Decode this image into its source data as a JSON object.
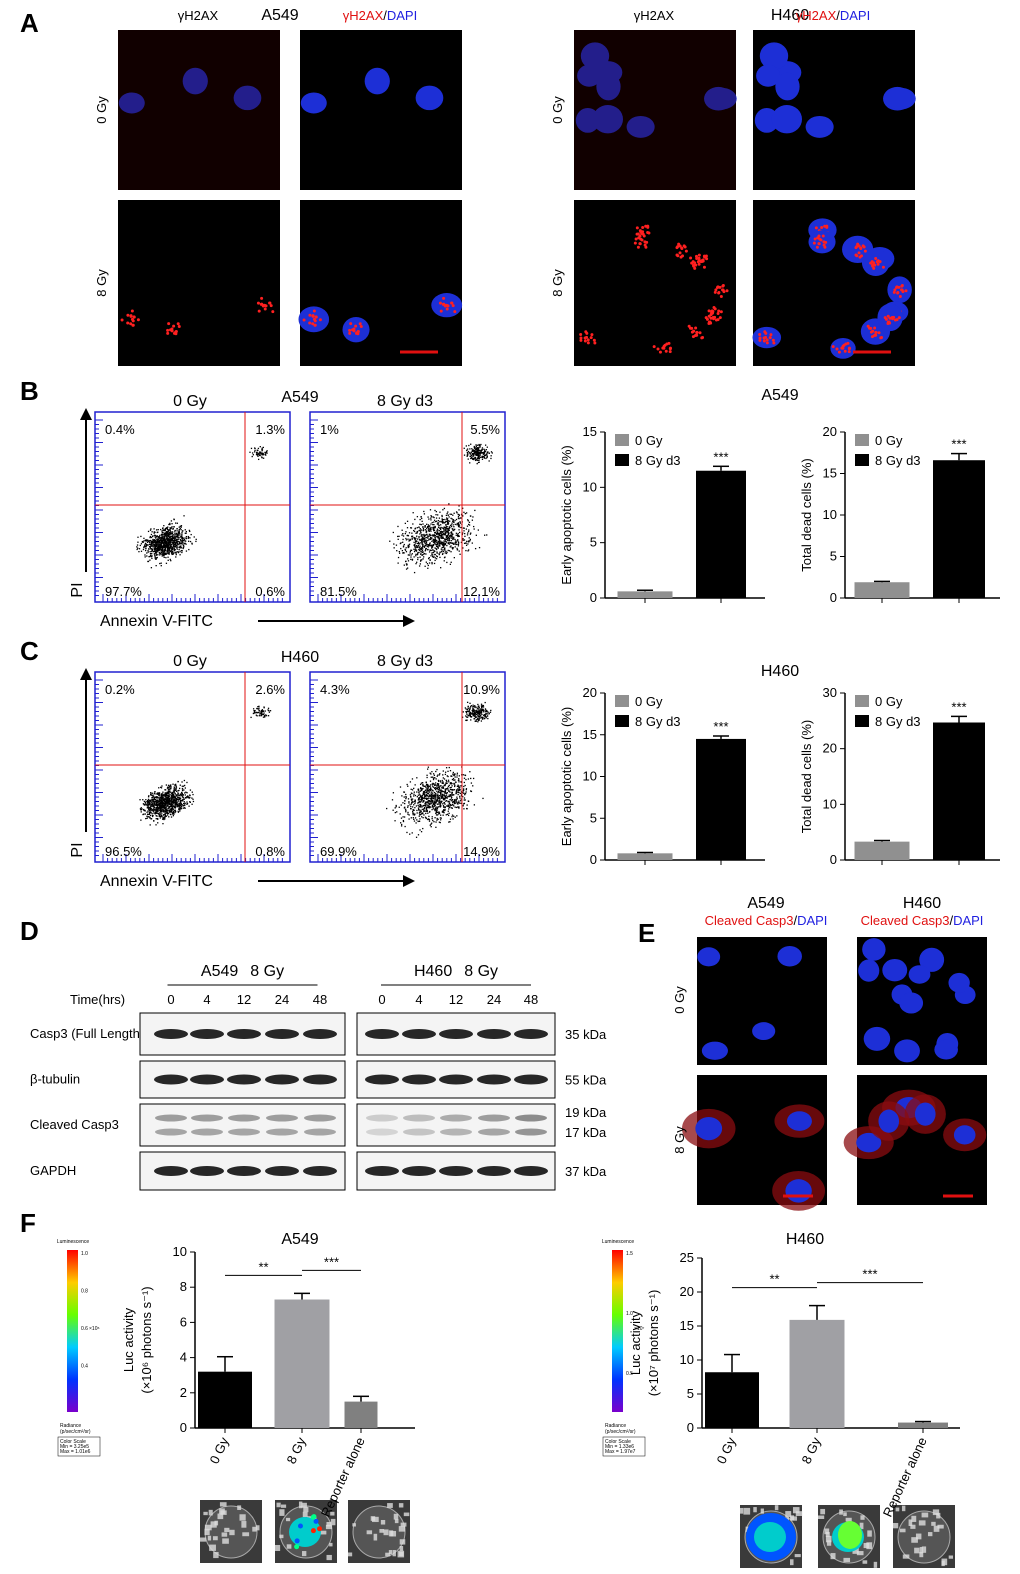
{
  "panel_labels": [
    "A",
    "B",
    "C",
    "D",
    "E",
    "F"
  ],
  "panel_a": {
    "cell_lines": [
      "A549",
      "H460"
    ],
    "stain": "γH2AX",
    "slash": "/",
    "dapi": "DAPI",
    "doses": [
      "0 Gy",
      "8 Gy"
    ]
  },
  "flow": {
    "y_axis": "PI",
    "x_axis": "Annexin V-FITC",
    "sets": [
      {
        "cell_line": "A549",
        "plots": [
          {
            "title": "0 Gy",
            "quadrants": [
              "0.4%",
              "1.3%",
              "97.7%",
              "0.6%"
            ]
          },
          {
            "title": "8 Gy d3",
            "quadrants": [
              "1%",
              "5.5%",
              "81.5%",
              "12.1%"
            ]
          }
        ]
      },
      {
        "cell_line": "H460",
        "plots": [
          {
            "title": "0 Gy",
            "quadrants": [
              "0.2%",
              "2.6%",
              "96.5%",
              "0.8%"
            ]
          },
          {
            "title": "8 Gy d3",
            "quadrants": [
              "4.3%",
              "10.9%",
              "69.9%",
              "14.9%"
            ]
          }
        ]
      }
    ]
  },
  "western": {
    "groups": [
      {
        "cell_line": "A549",
        "dose": "8 Gy"
      },
      {
        "cell_line": "H460",
        "dose": "8 Gy"
      }
    ],
    "time_label": "Time(hrs)",
    "times": [
      "0",
      "4",
      "12",
      "24",
      "48"
    ],
    "rows": [
      {
        "name": "Casp3 (Full Length)",
        "sizes": [
          "35 kDa"
        ]
      },
      {
        "name": "β-tubulin",
        "sizes": [
          "55 kDa"
        ]
      },
      {
        "name": "Cleaved Casp3",
        "sizes": [
          "19 kDa",
          "17 kDa"
        ]
      },
      {
        "name": "GAPDH",
        "sizes": [
          "37 kDa"
        ]
      }
    ]
  },
  "panel_e": {
    "cell_lines": [
      "A549",
      "H460"
    ],
    "stain": "Cleaved Casp3",
    "slash": "/",
    "dapi": "DAPI",
    "doses": [
      "0 Gy",
      "8 Gy"
    ]
  },
  "colorbars": [
    {
      "title": "Luminescence",
      "ticks": [
        "1.0",
        "0.8",
        "0.6",
        "0.4"
      ],
      "exponent": "×10⁶",
      "unit_title": "Radiance",
      "unit": "(p/sec/cm²/sr)",
      "scale_title": "Color Scale",
      "min": "Min = 3.25e5",
      "max": "Max = 1.01e6"
    },
    {
      "title": "Luminescence",
      "ticks": [
        "1.5",
        "1.0",
        "0.5"
      ],
      "exponent": "×10⁷",
      "unit_title": "Radiance",
      "unit": "(p/sec/cm²/sr)",
      "scale_title": "Color Scale",
      "min": "Min = 1.33e6",
      "max": "Max = 1.97e7"
    }
  ],
  "chart_data": [
    {
      "type": "bar",
      "title": "A549",
      "ylabel": [
        "Early apoptotic cells (%)"
      ],
      "categories": [
        "0 Gy",
        "8 Gy d3"
      ],
      "colors": [
        "#909090",
        "#000000"
      ],
      "values": [
        0.6,
        11.5
      ],
      "errors": [
        0.1,
        0.4
      ],
      "bar_labels": [
        null,
        "***"
      ],
      "ylim": [
        0,
        15
      ],
      "yticks": [
        0,
        5,
        10,
        15
      ],
      "legend": "upper left"
    },
    {
      "type": "bar",
      "ylabel": [
        "Total dead cells (%)"
      ],
      "categories": [
        "0 Gy",
        "8 Gy d3"
      ],
      "colors": [
        "#909090",
        "#000000"
      ],
      "values": [
        1.9,
        16.6
      ],
      "errors": [
        0.1,
        0.8
      ],
      "bar_labels": [
        null,
        "***"
      ],
      "ylim": [
        0,
        20
      ],
      "yticks": [
        0,
        5,
        10,
        15,
        20
      ],
      "legend": "upper left"
    },
    {
      "type": "bar",
      "title": "H460",
      "ylabel": [
        "Early apoptotic cells (%)"
      ],
      "categories": [
        "0 Gy",
        "8 Gy d3"
      ],
      "colors": [
        "#909090",
        "#000000"
      ],
      "values": [
        0.8,
        14.5
      ],
      "errors": [
        0.1,
        0.35
      ],
      "bar_labels": [
        null,
        "***"
      ],
      "ylim": [
        0,
        20
      ],
      "yticks": [
        0,
        5,
        10,
        15,
        20
      ],
      "legend": "upper left"
    },
    {
      "type": "bar",
      "ylabel": [
        "Total dead cells (%)"
      ],
      "categories": [
        "0 Gy",
        "8 Gy d3"
      ],
      "colors": [
        "#909090",
        "#000000"
      ],
      "values": [
        3.3,
        24.7
      ],
      "errors": [
        0.2,
        1.1
      ],
      "bar_labels": [
        null,
        "***"
      ],
      "ylim": [
        0,
        30
      ],
      "yticks": [
        0,
        10,
        20,
        30
      ],
      "legend": "upper left"
    },
    {
      "type": "bar",
      "title": "A549",
      "ylabel": [
        "Luc activity",
        "(×10⁶ photons s⁻¹)"
      ],
      "categories": [
        "0 Gy",
        "8 Gy",
        "Reporter alone"
      ],
      "colors": [
        "#000000",
        "#a0a0a4",
        "#808080"
      ],
      "values": [
        3.2,
        7.3,
        1.5
      ],
      "errors": [
        0.85,
        0.35,
        0.3
      ],
      "comparisons": [
        {
          "bars": [
            0,
            1
          ],
          "label": "**"
        },
        {
          "bars": [
            1,
            2
          ],
          "label": "***"
        }
      ],
      "ylim": [
        0,
        10
      ],
      "yticks": [
        0,
        2,
        4,
        6,
        8,
        10
      ]
    },
    {
      "type": "bar",
      "title": "H460",
      "ylabel": [
        "Luc activity",
        "(×10⁷ photons s⁻¹)"
      ],
      "categories": [
        "0 Gy",
        "8 Gy",
        "Reporter alone"
      ],
      "colors": [
        "#000000",
        "#a0a0a4",
        "#808080"
      ],
      "values": [
        8.2,
        15.9,
        0.8
      ],
      "errors": [
        2.6,
        2.1,
        0.15
      ],
      "comparisons": [
        {
          "bars": [
            0,
            1
          ],
          "label": "**"
        },
        {
          "bars": [
            1,
            2
          ],
          "label": "***"
        }
      ],
      "ylim": [
        0,
        25
      ],
      "yticks": [
        0,
        5,
        10,
        15,
        20,
        25
      ]
    }
  ]
}
